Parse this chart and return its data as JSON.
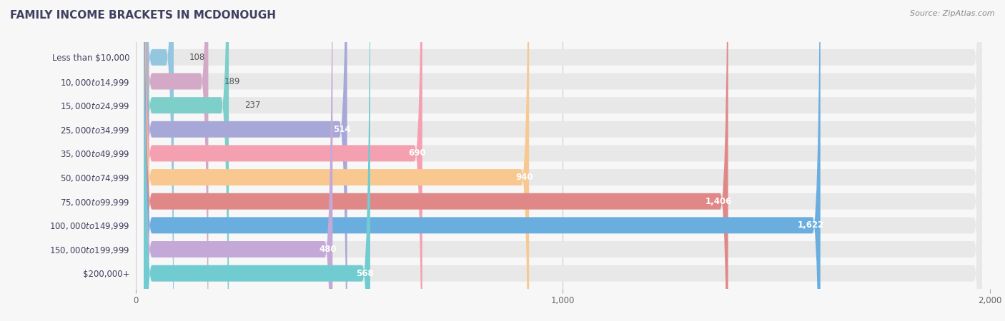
{
  "title": "Family Income Brackets in Mcdonough",
  "source": "Source: ZipAtlas.com",
  "categories": [
    "Less than $10,000",
    "$10,000 to $14,999",
    "$15,000 to $24,999",
    "$25,000 to $34,999",
    "$35,000 to $49,999",
    "$50,000 to $74,999",
    "$75,000 to $99,999",
    "$100,000 to $149,999",
    "$150,000 to $199,999",
    "$200,000+"
  ],
  "values": [
    108,
    189,
    237,
    514,
    690,
    940,
    1406,
    1622,
    480,
    568
  ],
  "colors": [
    "#94c6e0",
    "#d4a8c7",
    "#7ececa",
    "#a8a8d8",
    "#f4a0b0",
    "#f8c890",
    "#e08888",
    "#6aaee0",
    "#c4a8d8",
    "#70ccd0"
  ],
  "xlim": [
    0,
    2000
  ],
  "xticks": [
    0,
    1000,
    2000
  ],
  "xticklabels": [
    "0",
    "1,000",
    "2,000"
  ],
  "background_color": "#f7f7f7",
  "bar_bg_color": "#e8e8e8",
  "title_color": "#404060",
  "label_color": "#404060",
  "value_color_inside": "#ffffff",
  "value_color_outside": "#555555",
  "title_fontsize": 11,
  "label_fontsize": 8.5,
  "value_fontsize": 8.5,
  "source_fontsize": 8,
  "inside_threshold": 400
}
